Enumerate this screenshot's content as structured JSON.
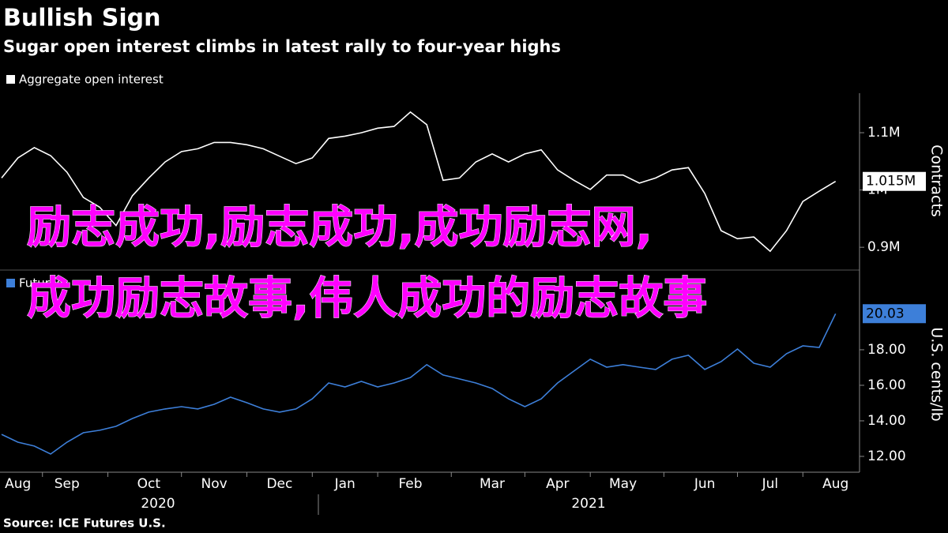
{
  "title": "Bullish Sign",
  "subtitle": "Sugar open interest climbs in latest rally to four-year highs",
  "source": "Source: ICE Futures U.S.",
  "overlay": [
    "励志成功,励志成功,成功励志网,",
    "成功励志故事,伟人成功的励志故事"
  ],
  "chart_data": [
    {
      "type": "line",
      "series": [
        {
          "name": "Aggregate open interest",
          "color": "#ffffff",
          "values": [
            1021000,
            1056000,
            1074000,
            1060000,
            1031000,
            987000,
            970000,
            938000,
            990000,
            1021000,
            1049000,
            1067000,
            1072000,
            1083000,
            1083000,
            1079000,
            1072000,
            1059000,
            1046000,
            1056000,
            1090000,
            1094000,
            1100000,
            1108000,
            1111000,
            1136000,
            1114000,
            1017000,
            1021000,
            1049000,
            1063000,
            1049000,
            1063000,
            1070000,
            1035000,
            1017000,
            1001000,
            1026000,
            1026000,
            1012000,
            1021000,
            1035000,
            1039000,
            994000,
            929000,
            915000,
            918000,
            893000,
            929000,
            980000,
            998000,
            1015000
          ]
        }
      ],
      "ylim": [
        863000,
        1169000
      ],
      "yticks": [
        {
          "value": 900000,
          "label": "0.9M"
        },
        {
          "value": 1000000,
          "label": "1M"
        },
        {
          "value": 1100000,
          "label": "1.1M"
        }
      ],
      "y_label": "Contracts",
      "end_label": "1.015M"
    },
    {
      "type": "line",
      "categories": [
        null,
        "Aug",
        null,
        null,
        "Sep",
        null,
        null,
        null,
        null,
        "Oct",
        null,
        null,
        null,
        "Nov",
        null,
        null,
        null,
        "Dec",
        null,
        null,
        null,
        "Jan",
        null,
        null,
        null,
        "Feb",
        null,
        null,
        null,
        null,
        "Mar",
        null,
        null,
        null,
        "Apr",
        null,
        null,
        null,
        "May",
        null,
        null,
        null,
        null,
        "Jun",
        null,
        null,
        null,
        "Jul",
        null,
        null,
        null,
        "Aug"
      ],
      "x_groups": [
        "2020",
        "2021"
      ],
      "series": [
        {
          "name": "Futures",
          "color": "#3d7fd9",
          "values": [
            13.24,
            12.8,
            12.58,
            12.13,
            12.8,
            13.33,
            13.47,
            13.69,
            14.13,
            14.49,
            14.67,
            14.8,
            14.67,
            14.93,
            15.33,
            15.02,
            14.67,
            14.49,
            14.67,
            15.24,
            16.13,
            15.91,
            16.22,
            15.91,
            16.13,
            16.44,
            17.16,
            16.58,
            16.36,
            16.13,
            15.82,
            15.24,
            14.8,
            15.24,
            16.13,
            16.8,
            17.47,
            17.02,
            17.16,
            17.02,
            16.89,
            17.47,
            17.69,
            16.89,
            17.33,
            18.04,
            17.24,
            17.02,
            17.78,
            18.22,
            18.13,
            20.03
          ]
        }
      ],
      "ylim": [
        11.11,
        22.13
      ],
      "yticks": [
        {
          "value": 12,
          "label": "12.00"
        },
        {
          "value": 14,
          "label": "14.00"
        },
        {
          "value": 16,
          "label": "16.00"
        },
        {
          "value": 18,
          "label": "18.00"
        }
      ],
      "y_label": "U.S. cents/lb",
      "end_label": "20.03"
    }
  ]
}
